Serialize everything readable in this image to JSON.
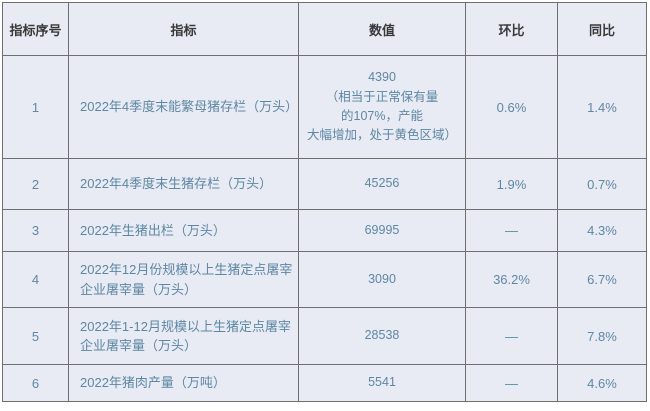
{
  "chart_data": {
    "type": "table",
    "title": "",
    "columns": [
      "指标序号",
      "指标",
      "数值",
      "环比",
      "同比"
    ],
    "rows": [
      [
        "1",
        "2022年4季度末能繁母猪存栏（万头）",
        "4390\n（相当于正常保有量\n的107%，产能\n大幅增加，处于黄色区域）",
        "0.6%",
        "1.4%"
      ],
      [
        "2",
        "2022年4季度末生猪存栏（万头）",
        "45256",
        "1.9%",
        "0.7%"
      ],
      [
        "3",
        "2022年生猪出栏（万头）",
        "69995",
        "—",
        "4.3%"
      ],
      [
        "4",
        "2022年12月份规模以上生猪定点屠宰企业屠宰量（万头）",
        "3090",
        "36.2%",
        "6.7%"
      ],
      [
        "5",
        "2022年1-12月规模以上生猪定点屠宰企业屠宰量（万头）",
        "28538",
        "—",
        "7.8%"
      ],
      [
        "6",
        "2022年猪肉产量（万吨）",
        "5541",
        "—",
        "4.6%"
      ]
    ],
    "layout": {
      "grid": true,
      "header_position": "top"
    }
  },
  "colors": {
    "cell_background": "#e9ebf4",
    "grid_line": "#6f6f6f",
    "header_text": "#3a3a3a",
    "body_text": "#5d87a3",
    "page_background": "#ffffff"
  }
}
